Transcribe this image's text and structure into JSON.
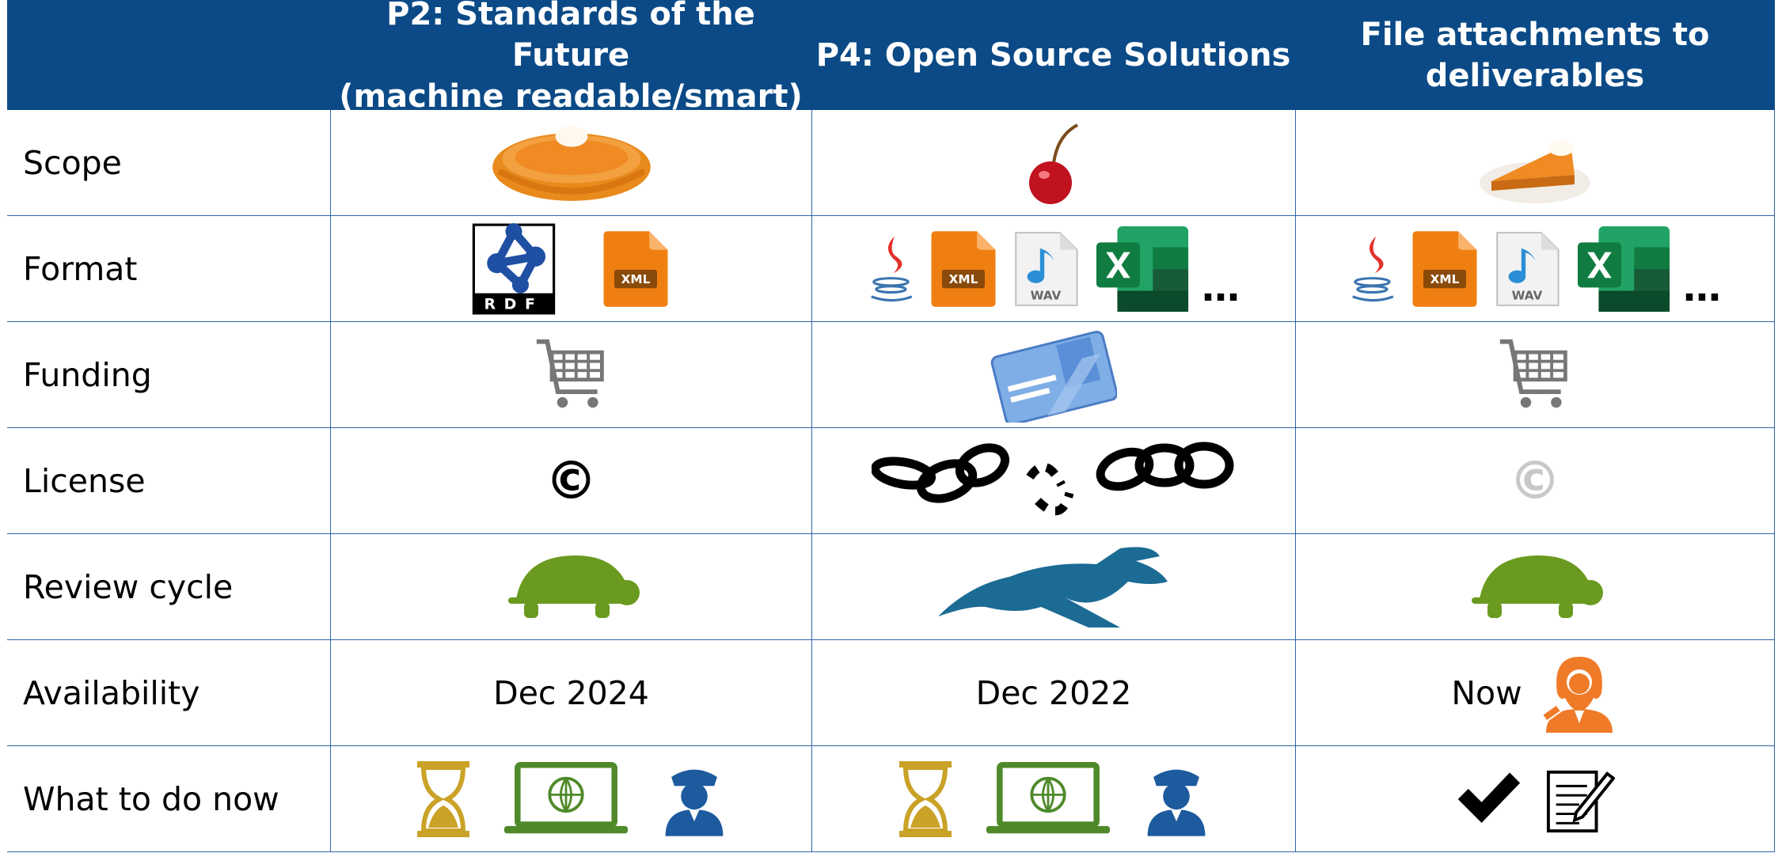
{
  "header": {
    "columns": [
      [
        "P2: Standards of the Future",
        "(machine readable/smart)"
      ],
      [
        "P4: Open Source Solutions"
      ],
      [
        "File attachments to",
        "deliverables"
      ]
    ]
  },
  "rows": {
    "labels": [
      "Scope",
      "Format",
      "Funding",
      "License",
      "Review cycle",
      "Availability",
      "What to do now"
    ]
  },
  "format": {
    "p2": [
      "RDF",
      "XML"
    ],
    "p4": [
      "XML",
      "WAV",
      "…"
    ],
    "files": [
      "XML",
      "WAV",
      "…"
    ]
  },
  "license": {
    "p2": "©",
    "files": "©"
  },
  "availability": [
    "Dec 2024",
    "Dec 2022",
    "Now"
  ]
}
